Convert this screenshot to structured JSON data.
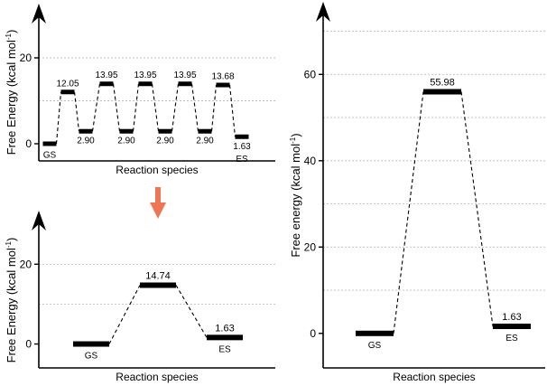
{
  "chart_data": [
    {
      "type": "line",
      "title": "",
      "xlabel": "Reaction species",
      "ylabel_main": "Free Energy (kcal mol",
      "ylabel_sup": "-1",
      "ylabel_close": ")",
      "ylim": [
        -4,
        28
      ],
      "yticks": [
        0,
        20
      ],
      "ygrid": [
        10,
        20
      ],
      "grid": true,
      "series": [
        {
          "values": [
            0,
            12.05,
            2.9,
            13.95,
            2.9,
            13.95,
            2.9,
            13.95,
            2.9,
            13.68,
            1.63
          ],
          "labels": [
            "",
            "12.05",
            "2.90",
            "13.95",
            "2.90",
            "13.95",
            "2.90",
            "13.95",
            "2.90",
            "13.68",
            "1.63"
          ]
        }
      ],
      "state_labels": [
        {
          "index": 0,
          "text": "GS"
        },
        {
          "index": 10,
          "text": "ES"
        }
      ]
    },
    {
      "type": "line",
      "title": "",
      "xlabel": "Reaction species",
      "ylabel_main": "Free Energy (kcal mol",
      "ylabel_sup": "-1",
      "ylabel_close": ")",
      "ylim": [
        -6,
        28
      ],
      "yticks": [
        0,
        20
      ],
      "ygrid": [
        10,
        20
      ],
      "grid": true,
      "series": [
        {
          "values": [
            0,
            14.74,
            1.63
          ],
          "labels": [
            "",
            "14.74",
            "1.63"
          ]
        }
      ],
      "state_labels": [
        {
          "index": 0,
          "text": "GS"
        },
        {
          "index": 2,
          "text": "ES"
        }
      ]
    },
    {
      "type": "line",
      "title": "",
      "xlabel": "Reaction species",
      "ylabel_main": "Free energy (kcal mol",
      "ylabel_sup": "-1",
      "ylabel_close": ")",
      "ylim": [
        -8,
        72
      ],
      "yticks": [
        0,
        20,
        40,
        60
      ],
      "ygrid": [
        10,
        20,
        30,
        40,
        50,
        60,
        70
      ],
      "grid": true,
      "series": [
        {
          "values": [
            0,
            55.98,
            1.63
          ],
          "labels": [
            "",
            "55.98",
            "1.63"
          ]
        }
      ],
      "state_labels": [
        {
          "index": 0,
          "text": "GS"
        },
        {
          "index": 2,
          "text": "ES"
        }
      ]
    }
  ],
  "colors": {
    "axis": "#000000",
    "grid": "#bdbdbd",
    "level": "#000000",
    "arrow": "#ee7654"
  }
}
